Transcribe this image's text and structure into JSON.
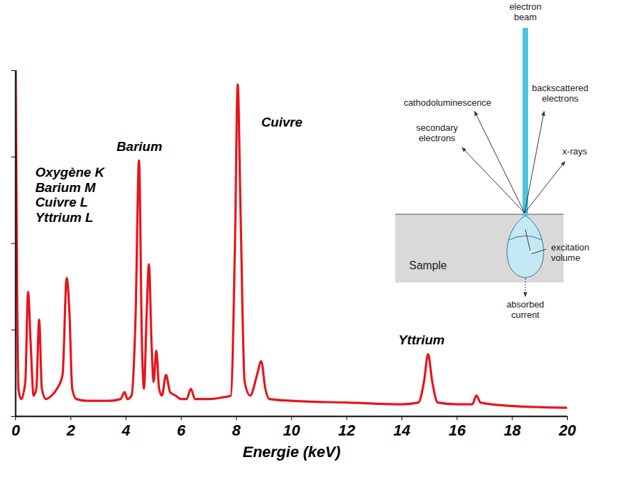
{
  "chart_data": {
    "type": "line",
    "xlabel": "Energie (keV)",
    "x": [
      0,
      0.05,
      0.1,
      0.2,
      0.35,
      0.45,
      0.55,
      0.65,
      0.75,
      0.85,
      0.95,
      1.1,
      1.3,
      1.5,
      1.7,
      1.85,
      1.95,
      2.05,
      2.2,
      2.6,
      3.0,
      3.4,
      3.8,
      3.95,
      4.05,
      4.2,
      4.35,
      4.47,
      4.58,
      4.65,
      4.75,
      4.83,
      4.93,
      5.0,
      5.1,
      5.2,
      5.3,
      5.45,
      5.6,
      5.8,
      6.0,
      6.2,
      6.35,
      6.5,
      7.0,
      7.5,
      7.8,
      7.95,
      8.05,
      8.15,
      8.3,
      8.5,
      8.75,
      8.9,
      9.05,
      9.2,
      10,
      12,
      14,
      14.6,
      14.8,
      14.95,
      15.1,
      15.3,
      16,
      16.55,
      16.7,
      16.85,
      18,
      20
    ],
    "values": [
      100,
      40,
      8,
      5,
      10,
      36,
      20,
      6,
      8,
      28,
      8,
      5,
      6,
      8,
      12,
      40,
      30,
      8,
      5,
      4.5,
      4.5,
      4.5,
      5,
      7,
      5,
      6,
      30,
      74,
      20,
      8,
      30,
      44,
      20,
      10,
      19,
      8,
      6,
      12,
      7,
      6,
      5,
      5,
      8,
      5,
      5,
      5.5,
      6,
      50,
      96,
      60,
      10,
      6,
      12,
      16,
      8,
      5,
      4.5,
      4,
      3.5,
      4,
      10,
      18,
      10,
      4,
      3.5,
      3.5,
      6,
      4,
      3,
      2.5
    ],
    "color": "#e8141c",
    "xlim": [
      0,
      20
    ],
    "xticks": [
      0,
      2,
      4,
      6,
      8,
      10,
      12,
      14,
      16,
      18,
      20
    ],
    "ylim": [
      0,
      100
    ],
    "yticks": [
      0,
      25,
      50,
      75,
      100
    ],
    "tick_labels": "x",
    "grid": false,
    "annotations": [
      {
        "text": "Oxygène K",
        "x": 0.71,
        "y": 70.6
      },
      {
        "text": "Barium M",
        "x": 0.71,
        "y": 66.2
      },
      {
        "text": "Cuivre L",
        "x": 0.71,
        "y": 61.8
      },
      {
        "text": "Yttrium L",
        "x": 0.71,
        "y": 57.4
      },
      {
        "text": "Barium",
        "x": 3.66,
        "y": 78
      },
      {
        "text": "Cuivre",
        "x": 8.9,
        "y": 85
      },
      {
        "text": "Yttrium",
        "x": 13.87,
        "y": 22
      }
    ]
  },
  "inset_diagram": {
    "beam": "electron beam",
    "cathodoluminescence": "cathodoluminescence",
    "backscattered": "backscattered electrons",
    "secondary": "secondary electrons",
    "xrays": "x-rays",
    "volume": "excitation volume",
    "sample": "Sample",
    "absorbed": "absorbed current"
  }
}
